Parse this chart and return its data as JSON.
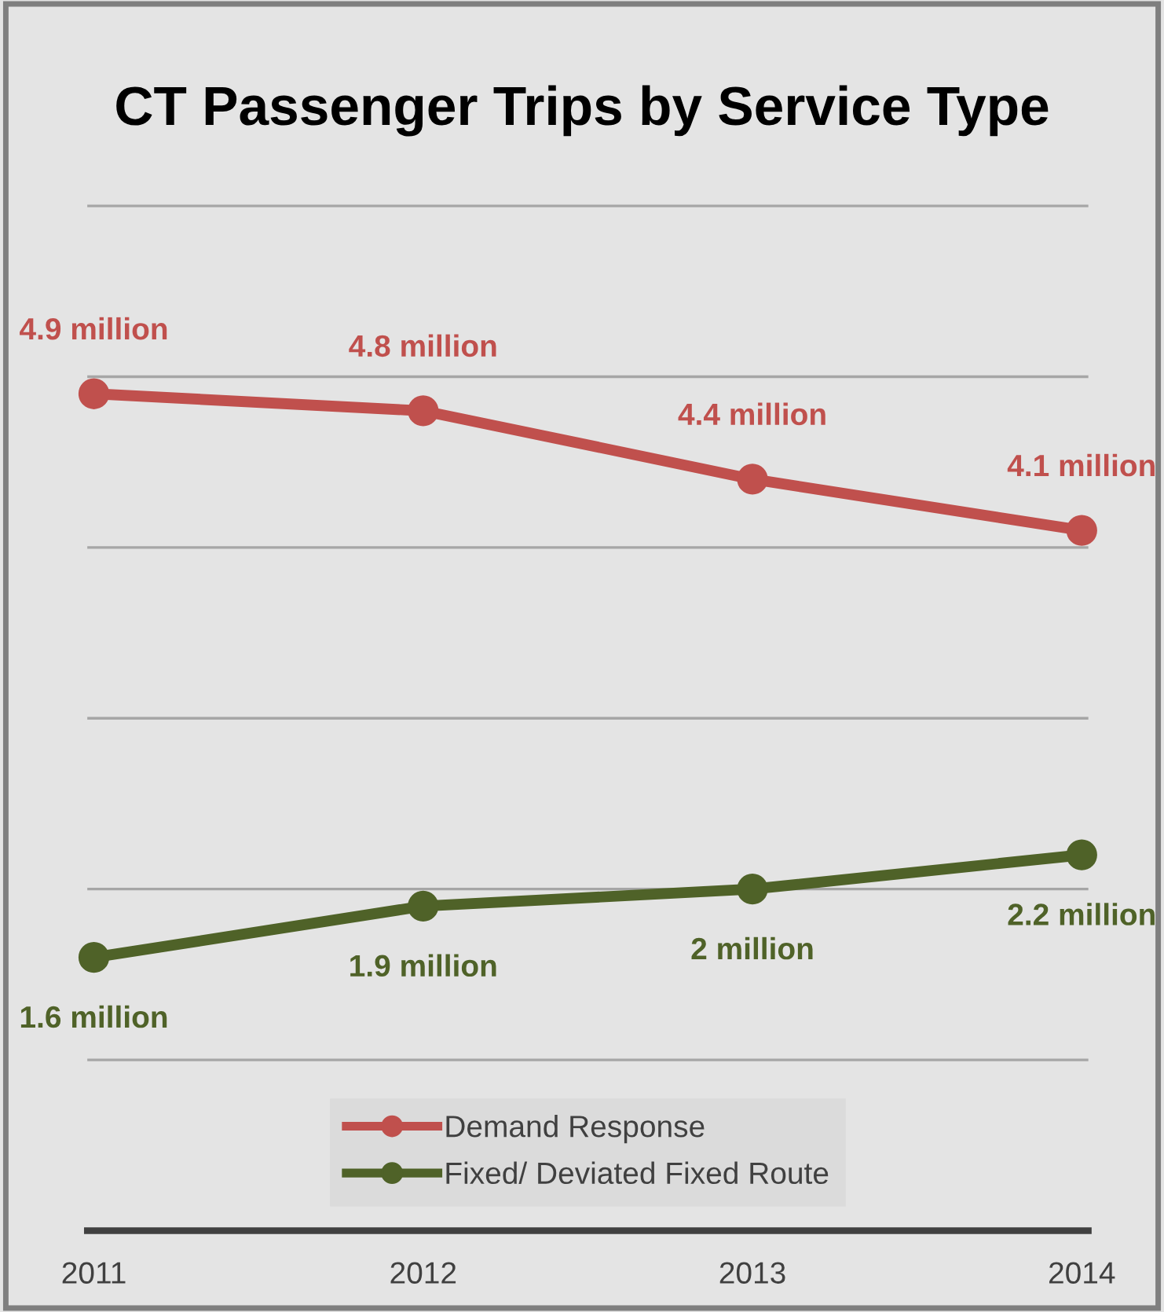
{
  "chart_data": {
    "type": "line",
    "title": "CT Passenger Trips by Service Type",
    "categories": [
      "2011",
      "2012",
      "2013",
      "2014"
    ],
    "series": [
      {
        "name": "Demand Response",
        "color": "#c0504d",
        "values": [
          4.9,
          4.8,
          4.4,
          4.1
        ],
        "value_labels": [
          "4.9 million",
          "4.8 million",
          "4.4 million",
          "4.1 million"
        ]
      },
      {
        "name": "Fixed/ Deviated Fixed Route",
        "color": "#4f6228",
        "values": [
          1.6,
          1.9,
          2,
          2.2
        ],
        "value_labels": [
          "1.6 million",
          "1.9 million",
          "2 million",
          "2.2 million"
        ]
      }
    ],
    "tick_labels": "x",
    "grid": "y",
    "legend": "bottom",
    "marker": "circle",
    "line_style": "solid"
  }
}
